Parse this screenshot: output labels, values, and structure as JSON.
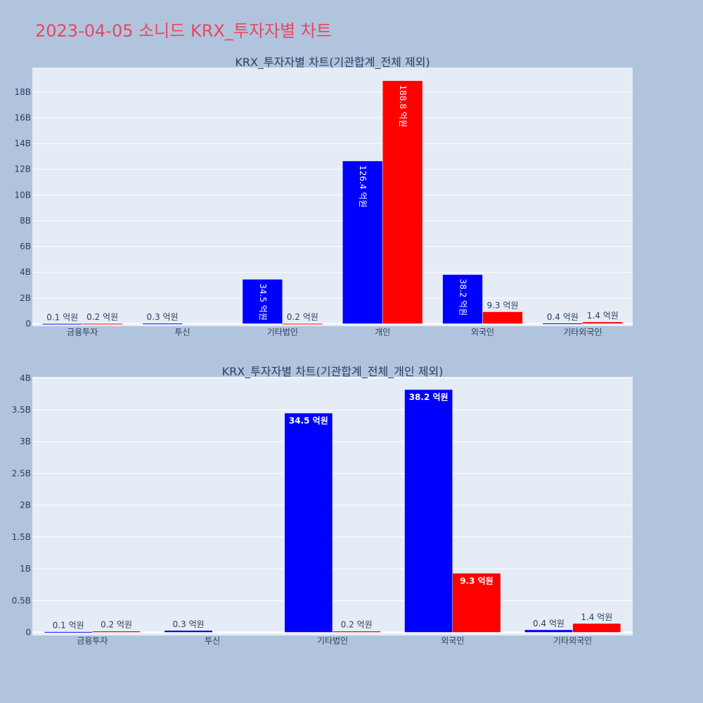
{
  "title": "2023-04-05 소니드 KRX_투자자별 차트",
  "colors": {
    "bar1": "#0000ff",
    "bar2": "#ff0000",
    "plot_bg": "#e5ecf6",
    "page_bg": "#b0c4de",
    "title": "#e8475f"
  },
  "chart_data": [
    {
      "type": "bar",
      "title": "KRX_투자자별 차트(기관합계_전체 제외)",
      "categories": [
        "금융투자",
        "투신",
        "기타법인",
        "개인",
        "외국인",
        "기타외국인"
      ],
      "series": [
        {
          "values": [
            10000000,
            30000000,
            3450000000,
            12640000000,
            3820000000,
            40000000
          ],
          "labels": [
            "0.1 억원",
            "0.3 억원",
            "34.5 억원",
            "126.4 억원",
            "38.2 억원",
            "0.4 억원"
          ],
          "color": "#0000ff"
        },
        {
          "values": [
            20000000,
            0,
            20000000,
            18880000000,
            930000000,
            140000000
          ],
          "labels": [
            "0.2 억원",
            "",
            "0.2 억원",
            "188.8 억원",
            "9.3 억원",
            "1.4 억원"
          ],
          "color": "#ff0000"
        }
      ],
      "yticks": [
        0,
        2000000000,
        4000000000,
        6000000000,
        8000000000,
        10000000000,
        12000000000,
        14000000000,
        16000000000,
        18000000000
      ],
      "ytick_labels": [
        "0",
        "2B",
        "4B",
        "6B",
        "8B",
        "10B",
        "12B",
        "14B",
        "16B",
        "18B"
      ],
      "ylim": [
        0,
        19900000000
      ],
      "label_style": "vertical"
    },
    {
      "type": "bar",
      "title": "KRX_투자자별 차트(기관합계_전체_개인 제외)",
      "categories": [
        "금융투자",
        "투신",
        "기타법인",
        "외국인",
        "기타외국인"
      ],
      "series": [
        {
          "values": [
            10000000,
            30000000,
            3450000000,
            3820000000,
            40000000
          ],
          "labels": [
            "0.1 억원",
            "0.3 억원",
            "34.5 억원",
            "38.2 억원",
            "0.4 억원"
          ],
          "color": "#0000ff"
        },
        {
          "values": [
            20000000,
            0,
            20000000,
            930000000,
            140000000
          ],
          "labels": [
            "0.2 억원",
            "",
            "0.2 억원",
            "9.3 억원",
            "1.4 억원"
          ],
          "color": "#ff0000"
        }
      ],
      "yticks": [
        0,
        500000000,
        1000000000,
        1500000000,
        2000000000,
        2500000000,
        3000000000,
        3500000000,
        4000000000
      ],
      "ytick_labels": [
        "0",
        "0.5B",
        "1B",
        "1.5B",
        "2B",
        "2.5B",
        "3B",
        "3.5B",
        "4B"
      ],
      "ylim": [
        0,
        4020000000
      ],
      "label_style": "horizontal"
    }
  ]
}
